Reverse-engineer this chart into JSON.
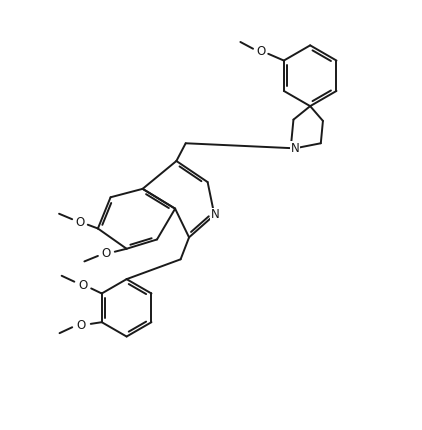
{
  "bg_color": "#ffffff",
  "line_color": "#1a1a1a",
  "lw": 1.4,
  "font_size": 8.5,
  "figsize": [
    4.22,
    4.3
  ],
  "dpi": 100,
  "xlim": [
    0,
    10
  ],
  "ylim": [
    0,
    10
  ]
}
